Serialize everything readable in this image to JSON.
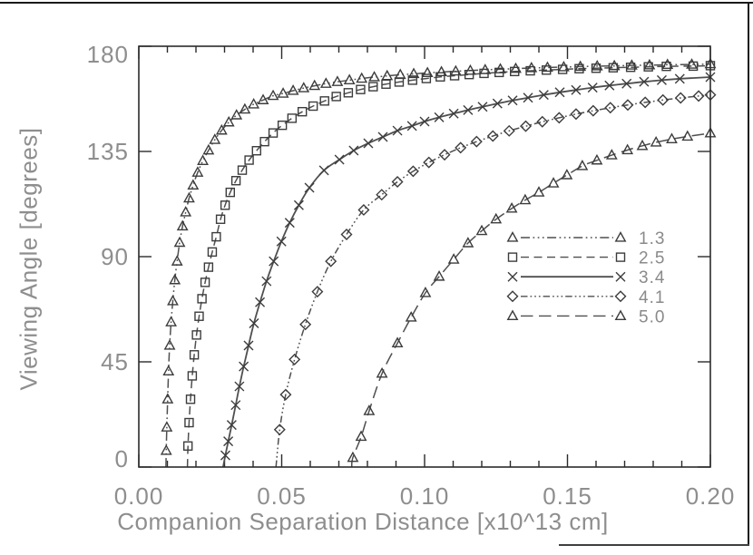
{
  "figure_title": "",
  "colors": {
    "axis": "#2b2b2b",
    "curve": "#4f4f4f",
    "marker": "#3c3c3c",
    "text": "#8e8e8e",
    "border": "#1a1a1a"
  },
  "chart_data": {
    "type": "line",
    "title": "",
    "xlabel": "Companion Separation Distance [x10^13 cm]",
    "ylabel": "Viewing Angle [degrees]",
    "xlim": [
      0.0,
      0.2
    ],
    "ylim": [
      0,
      180
    ],
    "grid": false,
    "legend_position": "right-middle",
    "x_ticks": [
      {
        "value": 0.0,
        "label": "0.00"
      },
      {
        "value": 0.05,
        "label": "0.05"
      },
      {
        "value": 0.1,
        "label": "0.10"
      },
      {
        "value": 0.15,
        "label": "0.15"
      },
      {
        "value": 0.2,
        "label": "0.20"
      }
    ],
    "x_minor_step": 0.01,
    "y_ticks": [
      {
        "value": 0,
        "label": "0"
      },
      {
        "value": 45,
        "label": "45"
      },
      {
        "value": 90,
        "label": "90"
      },
      {
        "value": 135,
        "label": "135"
      },
      {
        "value": 180,
        "label": "180"
      }
    ],
    "series": [
      {
        "name": "1.3",
        "marker": "triangle",
        "linestyle": "dash-dot-dot-dot",
        "points": [
          [
            0.0095,
            0
          ],
          [
            0.0096,
            7
          ],
          [
            0.0098,
            17
          ],
          [
            0.0101,
            29
          ],
          [
            0.0104,
            41
          ],
          [
            0.0108,
            52
          ],
          [
            0.0113,
            62
          ],
          [
            0.0119,
            71
          ],
          [
            0.0126,
            80
          ],
          [
            0.0134,
            88
          ],
          [
            0.0143,
            96
          ],
          [
            0.0153,
            103
          ],
          [
            0.0164,
            109
          ],
          [
            0.0176,
            115
          ],
          [
            0.019,
            120.5
          ],
          [
            0.0206,
            126
          ],
          [
            0.0224,
            131
          ],
          [
            0.0244,
            135.5
          ],
          [
            0.0266,
            140
          ],
          [
            0.029,
            144
          ],
          [
            0.0315,
            147.5
          ],
          [
            0.0342,
            150.5
          ],
          [
            0.0371,
            153
          ],
          [
            0.0402,
            155.2
          ],
          [
            0.0435,
            157
          ],
          [
            0.047,
            158.8
          ],
          [
            0.0505,
            159.8
          ],
          [
            0.054,
            161.0
          ],
          [
            0.0577,
            162.1
          ],
          [
            0.0615,
            163.1
          ],
          [
            0.0655,
            164.0
          ],
          [
            0.0695,
            164.8
          ],
          [
            0.0737,
            165.5
          ],
          [
            0.078,
            166.2
          ],
          [
            0.0824,
            166.8
          ],
          [
            0.0869,
            167.3
          ],
          [
            0.0915,
            167.8
          ],
          [
            0.0962,
            168.2
          ],
          [
            0.101,
            168.6
          ],
          [
            0.1059,
            169.0
          ],
          [
            0.1109,
            169.3
          ],
          [
            0.116,
            169.6
          ],
          [
            0.1212,
            169.9
          ],
          [
            0.1265,
            170.2
          ],
          [
            0.1319,
            170.4
          ],
          [
            0.1374,
            170.7
          ],
          [
            0.143,
            170.9
          ],
          [
            0.1487,
            171.1
          ],
          [
            0.1545,
            171.3
          ],
          [
            0.1604,
            171.5
          ],
          [
            0.1664,
            171.6
          ],
          [
            0.1725,
            171.8
          ],
          [
            0.1787,
            171.9
          ],
          [
            0.185,
            172.1
          ],
          [
            0.1935,
            172.2
          ],
          [
            0.2,
            172.4
          ]
        ]
      },
      {
        "name": "2.5",
        "marker": "square",
        "linestyle": "dashed",
        "points": [
          [
            0.017,
            0
          ],
          [
            0.0172,
            9
          ],
          [
            0.0176,
            19
          ],
          [
            0.0181,
            29
          ],
          [
            0.0187,
            39
          ],
          [
            0.0194,
            48
          ],
          [
            0.0202,
            56.5
          ],
          [
            0.0211,
            64.5
          ],
          [
            0.0221,
            72
          ],
          [
            0.0232,
            79
          ],
          [
            0.0244,
            85.5
          ],
          [
            0.0257,
            92
          ],
          [
            0.0271,
            98.5
          ],
          [
            0.0286,
            106
          ],
          [
            0.0302,
            112
          ],
          [
            0.032,
            117.5
          ],
          [
            0.034,
            122.5
          ],
          [
            0.0362,
            127
          ],
          [
            0.0386,
            131.3
          ],
          [
            0.0412,
            135.3
          ],
          [
            0.044,
            139.2
          ],
          [
            0.047,
            142.9
          ],
          [
            0.0502,
            146.2
          ],
          [
            0.0536,
            149.2
          ],
          [
            0.0572,
            152
          ],
          [
            0.061,
            154.4
          ],
          [
            0.065,
            156.6
          ],
          [
            0.0691,
            158.5
          ],
          [
            0.0733,
            160.1
          ],
          [
            0.0776,
            161.5
          ],
          [
            0.082,
            162.7
          ],
          [
            0.0865,
            163.8
          ],
          [
            0.0911,
            164.7
          ],
          [
            0.0958,
            165.5
          ],
          [
            0.1006,
            166.2
          ],
          [
            0.1055,
            166.9
          ],
          [
            0.1105,
            167.4
          ],
          [
            0.1156,
            167.9
          ],
          [
            0.1208,
            168.4
          ],
          [
            0.1261,
            168.8
          ],
          [
            0.1315,
            169.2
          ],
          [
            0.137,
            169.5
          ],
          [
            0.1426,
            169.8
          ],
          [
            0.1483,
            170.1
          ],
          [
            0.1541,
            170.4
          ],
          [
            0.16,
            170.6
          ],
          [
            0.166,
            170.8
          ],
          [
            0.1721,
            171.0
          ],
          [
            0.1783,
            171.2
          ],
          [
            0.1846,
            171.4
          ],
          [
            0.194,
            171.5
          ],
          [
            0.2,
            171.7
          ]
        ]
      },
      {
        "name": "3.4",
        "marker": "x",
        "linestyle": "solid",
        "points": [
          [
            0.0295,
            0
          ],
          [
            0.0303,
            5
          ],
          [
            0.0313,
            11
          ],
          [
            0.0325,
            18
          ],
          [
            0.0339,
            26.5
          ],
          [
            0.0352,
            34.5
          ],
          [
            0.0367,
            43
          ],
          [
            0.0384,
            52
          ],
          [
            0.0403,
            61.5
          ],
          [
            0.0424,
            70.5
          ],
          [
            0.0447,
            79.5
          ],
          [
            0.0472,
            88
          ],
          [
            0.0499,
            96.5
          ],
          [
            0.0528,
            104.5
          ],
          [
            0.056,
            112
          ],
          [
            0.0597,
            119.5
          ],
          [
            0.0648,
            126.9
          ],
          [
            0.0702,
            131.5
          ],
          [
            0.0752,
            135.4
          ],
          [
            0.0803,
            138.5
          ],
          [
            0.0854,
            141.2
          ],
          [
            0.0905,
            143.9
          ],
          [
            0.0956,
            145.9
          ],
          [
            0.1,
            147.8
          ],
          [
            0.1051,
            149.6
          ],
          [
            0.1102,
            151.2
          ],
          [
            0.1152,
            152.7
          ],
          [
            0.1203,
            154.1
          ],
          [
            0.1255,
            155.5
          ],
          [
            0.1308,
            156.8
          ],
          [
            0.1362,
            158.0
          ],
          [
            0.1417,
            159.2
          ],
          [
            0.1473,
            160.3
          ],
          [
            0.153,
            161.3
          ],
          [
            0.1588,
            162.3
          ],
          [
            0.1647,
            163.2
          ],
          [
            0.1707,
            164.0
          ],
          [
            0.1768,
            164.8
          ],
          [
            0.183,
            165.5
          ],
          [
            0.1893,
            166.1
          ],
          [
            0.2,
            166.8
          ]
        ]
      },
      {
        "name": "4.1",
        "marker": "diamond",
        "linestyle": "dash-dot-dot-dot-short",
        "points": [
          [
            0.048,
            0
          ],
          [
            0.0493,
            16
          ],
          [
            0.0514,
            31
          ],
          [
            0.0545,
            46
          ],
          [
            0.0583,
            61
          ],
          [
            0.0625,
            75
          ],
          [
            0.0672,
            88
          ],
          [
            0.0727,
            99.5
          ],
          [
            0.0787,
            110
          ],
          [
            0.085,
            116.5
          ],
          [
            0.0905,
            122
          ],
          [
            0.096,
            126.5
          ],
          [
            0.1015,
            130.3
          ],
          [
            0.107,
            133.6
          ],
          [
            0.1126,
            136.6
          ],
          [
            0.1182,
            139.2
          ],
          [
            0.1239,
            141.6
          ],
          [
            0.1296,
            143.8
          ],
          [
            0.1354,
            145.8
          ],
          [
            0.1412,
            147.7
          ],
          [
            0.1471,
            149.4
          ],
          [
            0.153,
            151.0
          ],
          [
            0.159,
            152.4
          ],
          [
            0.165,
            153.7
          ],
          [
            0.1711,
            154.9
          ],
          [
            0.1772,
            156.0
          ],
          [
            0.1834,
            157.0
          ],
          [
            0.1896,
            157.9
          ],
          [
            0.1959,
            158.7
          ],
          [
            0.2,
            159.2
          ]
        ]
      },
      {
        "name": "5.0",
        "marker": "triangle",
        "linestyle": "long-dash",
        "points": [
          [
            0.0745,
            0
          ],
          [
            0.0749,
            4
          ],
          [
            0.0778,
            13
          ],
          [
            0.0806,
            24
          ],
          [
            0.0851,
            40
          ],
          [
            0.0905,
            53
          ],
          [
            0.0953,
            64
          ],
          [
            0.1003,
            74.5
          ],
          [
            0.1051,
            81.5
          ],
          [
            0.1102,
            88.8
          ],
          [
            0.1152,
            95.8
          ],
          [
            0.12,
            101
          ],
          [
            0.125,
            106
          ],
          [
            0.1305,
            110.6
          ],
          [
            0.1352,
            114.2
          ],
          [
            0.14,
            117.5
          ],
          [
            0.1451,
            121.4
          ],
          [
            0.1498,
            124.9
          ],
          [
            0.1552,
            128.8
          ],
          [
            0.1603,
            131.2
          ],
          [
            0.1655,
            133.4
          ],
          [
            0.171,
            135.6
          ],
          [
            0.1762,
            137.4
          ],
          [
            0.181,
            138.9
          ],
          [
            0.1865,
            140.3
          ],
          [
            0.192,
            141.4
          ],
          [
            0.2,
            142.8
          ]
        ]
      }
    ]
  }
}
